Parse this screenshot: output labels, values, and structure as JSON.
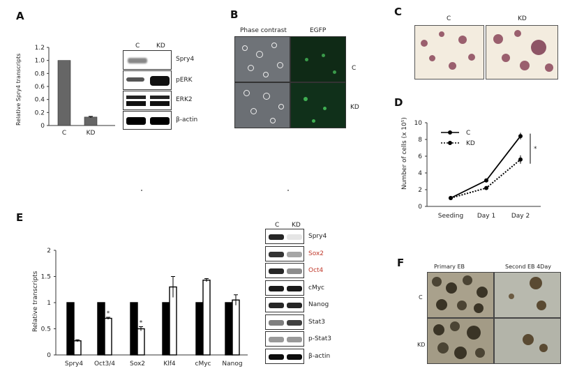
{
  "panels": {
    "a": "A",
    "b": "B",
    "c": "C",
    "d": "D",
    "e": "E",
    "f": "F"
  },
  "panel_a": {
    "bar_chart": {
      "type": "bar",
      "categories": [
        "C",
        "KD"
      ],
      "values": [
        1.0,
        0.13
      ],
      "errors": [
        0.0,
        0.01
      ],
      "ylabel": "Relative Spry4 transcripts",
      "ylim": [
        0,
        1.2
      ],
      "yticks": [
        "0",
        "0.2",
        "0.4",
        "0.6",
        "0.8",
        "1.0",
        "1.2"
      ],
      "bar_color": "#666666"
    },
    "blot_lanes": [
      "C",
      "KD"
    ],
    "blot_rows": [
      "Spry4",
      "pERK",
      "ERK2",
      "β-actin"
    ]
  },
  "panel_b": {
    "headers": [
      "Phase  contrast",
      "EGFP"
    ],
    "row_labels": [
      "C",
      "KD"
    ]
  },
  "panel_c": {
    "headers": [
      "C",
      "KD"
    ]
  },
  "panel_e": {
    "blot_lanes": [
      "C",
      "KD"
    ],
    "blot_rows": [
      {
        "label": "Spry4",
        "color": "#222222"
      },
      {
        "label": "Sox2",
        "color": "#c0392b"
      },
      {
        "label": "Oct4",
        "color": "#c0392b"
      },
      {
        "label": "cMyc",
        "color": "#222222"
      },
      {
        "label": "Nanog",
        "color": "#222222"
      },
      {
        "label": "Stat3",
        "color": "#222222"
      },
      {
        "label": "p-Stat3",
        "color": "#222222"
      },
      {
        "label": "β-actin",
        "color": "#222222"
      }
    ]
  },
  "panel_f": {
    "headers": [
      "Primary EB",
      "Second  EB 4Day"
    ],
    "row_labels": [
      "C",
      "KD"
    ]
  },
  "chart_data": [
    {
      "panel": "A",
      "type": "bar",
      "categories": [
        "C",
        "KD"
      ],
      "values": [
        1.0,
        0.13
      ],
      "ylabel": "Relative Spry4 transcripts",
      "ylim": [
        0,
        1.2
      ]
    },
    {
      "panel": "D",
      "type": "line",
      "x": [
        "Seeding",
        "Day 1",
        "Day 2"
      ],
      "series": [
        {
          "name": "C",
          "values": [
            1.0,
            3.1,
            8.4
          ],
          "errors": [
            0.1,
            0.2,
            0.4
          ],
          "style": "solid"
        },
        {
          "name": "KD",
          "values": [
            1.0,
            2.2,
            5.6
          ],
          "errors": [
            0.1,
            0.1,
            0.5
          ],
          "style": "dotted"
        }
      ],
      "ylabel": "Number of cells (x 10⁵)",
      "ylim": [
        0,
        10
      ],
      "yticks": [
        "0",
        "2",
        "4",
        "6",
        "8",
        "10"
      ],
      "annotation": "*",
      "legend": "top-left"
    },
    {
      "panel": "E",
      "type": "bar",
      "categories": [
        "Spry4",
        "Oct3/4",
        "Sox2",
        "Klf4",
        "cMyc",
        "Nanog"
      ],
      "series": [
        {
          "name": "C",
          "values": [
            1.0,
            1.0,
            1.0,
            1.0,
            1.0,
            1.0
          ],
          "errors": [
            0,
            0,
            0,
            0,
            0,
            0
          ],
          "fill": "#000000"
        },
        {
          "name": "KD",
          "values": [
            0.27,
            0.7,
            0.5,
            1.3,
            1.43,
            1.05
          ],
          "errors": [
            0.02,
            0.02,
            0.04,
            0.2,
            0.03,
            0.1
          ],
          "fill": "#ffffff"
        }
      ],
      "significance": [
        "",
        "*",
        "*",
        "",
        "",
        ""
      ],
      "ylabel": "Relative transcripts",
      "ylim": [
        0,
        2
      ],
      "yticks": [
        "0",
        "0.5",
        "1",
        "1.5",
        "2"
      ]
    }
  ]
}
